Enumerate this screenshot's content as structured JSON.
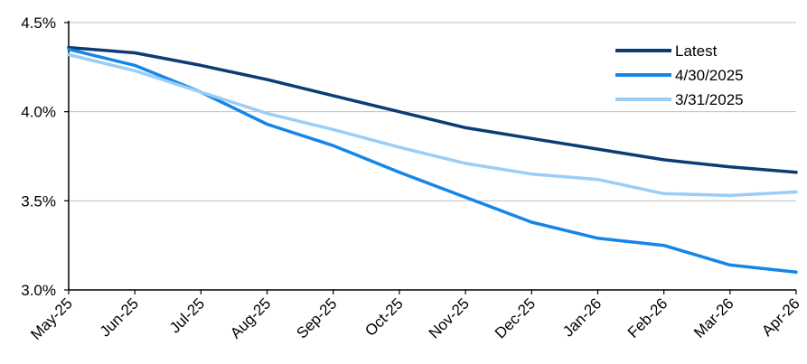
{
  "chart_data": {
    "type": "line",
    "categories": [
      "May-25",
      "Jun-25",
      "Jul-25",
      "Aug-25",
      "Sep-25",
      "Oct-25",
      "Nov-25",
      "Dec-25",
      "Jan-26",
      "Feb-26",
      "Mar-26",
      "Apr-26"
    ],
    "series": [
      {
        "name": "Latest",
        "color": "#0B3C73",
        "values": [
          4.36,
          4.33,
          4.26,
          4.18,
          4.09,
          4.0,
          3.91,
          3.85,
          3.79,
          3.73,
          3.69,
          3.66
        ]
      },
      {
        "name": "4/30/2025",
        "color": "#1486E8",
        "values": [
          4.35,
          4.26,
          4.11,
          3.93,
          3.81,
          3.66,
          3.52,
          3.38,
          3.29,
          3.25,
          3.14,
          3.1
        ]
      },
      {
        "name": "3/31/2025",
        "color": "#9CCDF5",
        "values": [
          4.32,
          4.23,
          4.11,
          3.99,
          3.9,
          3.8,
          3.71,
          3.65,
          3.62,
          3.54,
          3.53,
          3.55
        ]
      }
    ],
    "yticks": [
      "3.0%",
      "3.5%",
      "4.0%",
      "4.5%"
    ],
    "ylim": [
      3.0,
      4.5
    ],
    "ytick_values": [
      3.0,
      3.5,
      4.0,
      4.5
    ],
    "grid": "horizontal",
    "legend_position": "top-right"
  }
}
